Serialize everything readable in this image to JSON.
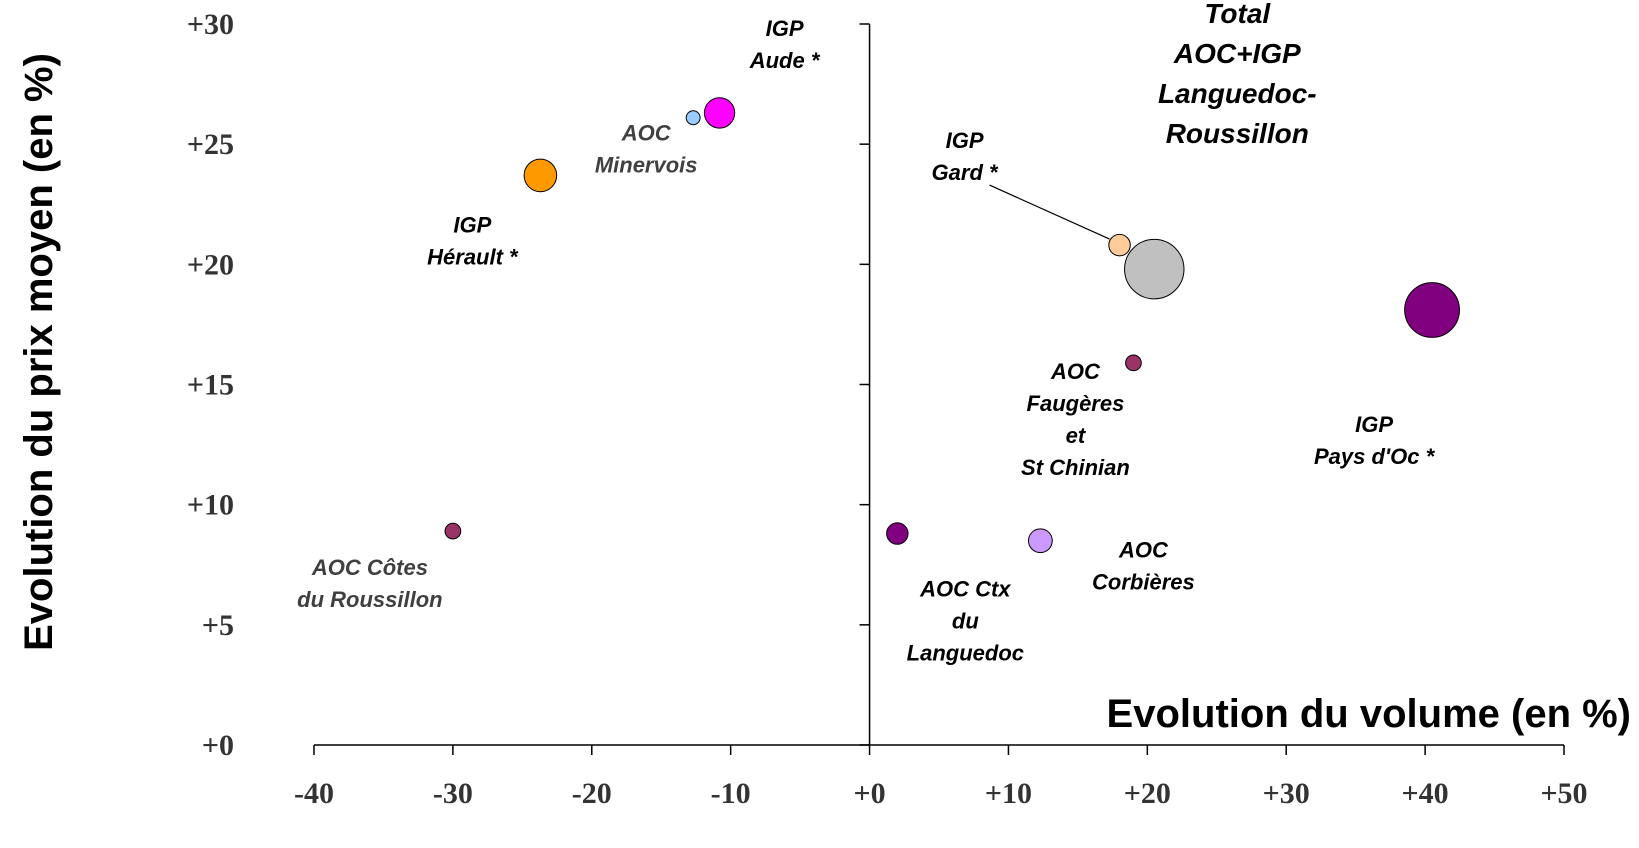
{
  "chart_data": {
    "type": "scatter",
    "title": "",
    "xlabel": "Evolution du volume (en %)",
    "ylabel": "Evolution du prix moyen (en %)",
    "xlim": [
      -40,
      50
    ],
    "ylim": [
      0,
      30
    ],
    "x_ticks": [
      -40,
      -30,
      -20,
      -10,
      0,
      10,
      20,
      30,
      40,
      50
    ],
    "x_tick_labels": [
      "-40",
      "-30",
      "-20",
      "-10",
      "+0",
      "+10",
      "+20",
      "+30",
      "+40",
      "+50"
    ],
    "y_ticks": [
      0,
      5,
      10,
      15,
      20,
      25,
      30
    ],
    "y_tick_labels": [
      "+0",
      "+5",
      "+10",
      "+15",
      "+20",
      "+25",
      "+30"
    ],
    "grid": false,
    "legend": "none",
    "points": [
      {
        "id": "total",
        "label": [
          "Total",
          "AOC+IGP",
          "Languedoc-",
          "Roussillon"
        ],
        "x": 20.5,
        "y": 19.8,
        "size": 10,
        "color": "#c0c0c0",
        "label_style": "total"
      },
      {
        "id": "pays-doc",
        "label": [
          "IGP",
          "Pays d'Oc *"
        ],
        "x": 40.5,
        "y": 18.1,
        "size": 8.5,
        "color": "#800080",
        "label_style": "normal"
      },
      {
        "id": "herault",
        "label": [
          "IGP",
          "Hérault *"
        ],
        "x": -23.7,
        "y": 23.7,
        "size": 3,
        "color": "#ff9900",
        "label_style": "normal"
      },
      {
        "id": "aude",
        "label": [
          "IGP",
          "Aude *"
        ],
        "x": -10.8,
        "y": 26.3,
        "size": 2.6,
        "color": "#ff00ff",
        "label_style": "normal"
      },
      {
        "id": "minervois",
        "label": [
          "AOC",
          "Minervois"
        ],
        "x": -12.7,
        "y": 26.1,
        "size": 0.55,
        "color": "#99ccff",
        "label_style": "grey"
      },
      {
        "id": "gard",
        "label": [
          "IGP",
          "Gard *"
        ],
        "x": 18.0,
        "y": 20.8,
        "size": 1.3,
        "color": "#ffcc99",
        "label_style": "normal"
      },
      {
        "id": "faugeres",
        "label": [
          "AOC",
          "Faugères",
          "et",
          "St Chinian"
        ],
        "x": 19.0,
        "y": 15.9,
        "size": 0.7,
        "color": "#993366",
        "label_style": "normal"
      },
      {
        "id": "cotes-roussillon",
        "label": [
          "AOC Côtes",
          "du Roussillon"
        ],
        "x": -30.0,
        "y": 8.9,
        "size": 0.7,
        "color": "#993366",
        "label_style": "grey"
      },
      {
        "id": "coteaux-languedoc",
        "label": [
          "AOC Ctx",
          "du",
          "Languedoc"
        ],
        "x": 2.0,
        "y": 8.8,
        "size": 1.3,
        "color": "#800080",
        "label_style": "normal"
      },
      {
        "id": "corbieres",
        "label": [
          "AOC",
          "Corbières"
        ],
        "x": 12.3,
        "y": 8.5,
        "size": 1.6,
        "color": "#cc99ff",
        "label_style": "normal"
      }
    ]
  }
}
